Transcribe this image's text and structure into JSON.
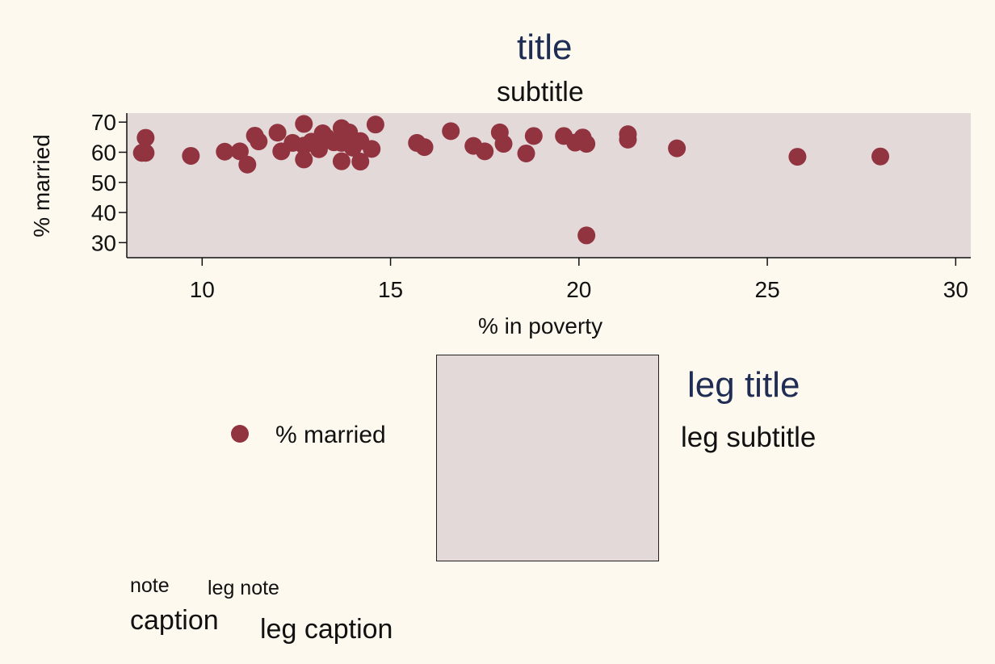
{
  "chart_data": {
    "type": "scatter",
    "title": "title",
    "subtitle": "subtitle",
    "xlabel": "% in poverty",
    "ylabel": "% married",
    "xlim": [
      8,
      30.4
    ],
    "ylim": [
      25,
      73
    ],
    "xticks": [
      10,
      15,
      20,
      25,
      30
    ],
    "yticks": [
      30,
      40,
      50,
      60,
      70
    ],
    "grid": false,
    "marker_color": "#923340",
    "plot_background": "#e4d9d9",
    "page_background": "#fdf9ef",
    "series": [
      {
        "name": "% married",
        "points": [
          [
            8.4,
            59.8
          ],
          [
            8.5,
            64.8
          ],
          [
            8.5,
            59.8
          ],
          [
            9.7,
            58.8
          ],
          [
            10.6,
            60.2
          ],
          [
            11.0,
            60.3
          ],
          [
            11.2,
            55.9
          ],
          [
            11.4,
            65.5
          ],
          [
            11.5,
            63.6
          ],
          [
            12.0,
            66.5
          ],
          [
            12.1,
            60.3
          ],
          [
            12.4,
            63.1
          ],
          [
            12.7,
            69.4
          ],
          [
            12.7,
            62.2
          ],
          [
            12.7,
            57.6
          ],
          [
            12.9,
            63.5
          ],
          [
            13.1,
            61.0
          ],
          [
            13.2,
            66.3
          ],
          [
            13.3,
            64.9
          ],
          [
            13.5,
            63.3
          ],
          [
            13.7,
            68.0
          ],
          [
            13.7,
            63.1
          ],
          [
            13.7,
            57.0
          ],
          [
            13.9,
            66.6
          ],
          [
            14.0,
            61.5
          ],
          [
            14.2,
            63.7
          ],
          [
            14.2,
            56.9
          ],
          [
            14.5,
            61.1
          ],
          [
            14.6,
            69.2
          ],
          [
            15.7,
            63.1
          ],
          [
            15.9,
            61.7
          ],
          [
            16.6,
            67.0
          ],
          [
            17.2,
            62.1
          ],
          [
            17.5,
            60.3
          ],
          [
            17.9,
            66.6
          ],
          [
            18.0,
            62.8
          ],
          [
            18.6,
            59.6
          ],
          [
            18.8,
            65.4
          ],
          [
            19.6,
            65.4
          ],
          [
            19.9,
            63.2
          ],
          [
            20.1,
            64.9
          ],
          [
            20.2,
            62.8
          ],
          [
            20.2,
            32.4
          ],
          [
            21.3,
            66.0
          ],
          [
            21.3,
            64.2
          ],
          [
            22.6,
            61.3
          ],
          [
            25.8,
            58.5
          ],
          [
            28.0,
            58.6
          ]
        ]
      }
    ]
  },
  "legend": {
    "key_label": "% married",
    "title": "leg title",
    "subtitle": "leg subtitle",
    "note": "leg note",
    "caption": "leg caption"
  },
  "note": "note",
  "caption": "caption"
}
